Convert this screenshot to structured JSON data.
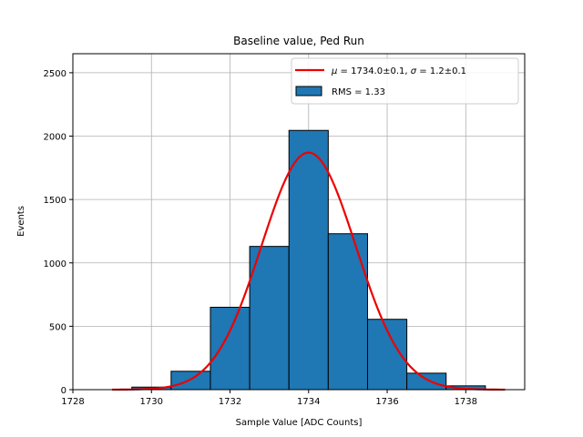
{
  "chart_data": {
    "type": "bar",
    "title": "Baseline value, Ped Run",
    "xlabel": "Sample Value [ADC Counts]",
    "ylabel": "Events",
    "xlim": [
      1728,
      1739.5
    ],
    "ylim": [
      0,
      2650
    ],
    "x_ticks": [
      1728,
      1730,
      1732,
      1734,
      1736,
      1738
    ],
    "y_ticks": [
      0,
      500,
      1000,
      1500,
      2000,
      2500
    ],
    "grid": true,
    "legend_position": "upper right",
    "bins": [
      {
        "left": 1729.5,
        "right": 1730.5,
        "count": 20
      },
      {
        "left": 1730.5,
        "right": 1731.5,
        "count": 145
      },
      {
        "left": 1731.5,
        "right": 1732.5,
        "count": 650
      },
      {
        "left": 1732.5,
        "right": 1733.5,
        "count": 1130
      },
      {
        "left": 1733.5,
        "right": 1734.5,
        "count": 2045
      },
      {
        "left": 1734.5,
        "right": 1735.5,
        "count": 1230
      },
      {
        "left": 1735.5,
        "right": 1736.5,
        "count": 555
      },
      {
        "left": 1736.5,
        "right": 1737.5,
        "count": 130
      },
      {
        "left": 1737.5,
        "right": 1738.5,
        "count": 30
      }
    ],
    "fit": {
      "mu": 1734.0,
      "sigma": 1.2,
      "amplitude": 1870,
      "x_range": [
        1729,
        1739
      ]
    },
    "legend": {
      "fit_label_mu": "μ",
      "fit_label_rest": " = 1734.0±0.1, ",
      "fit_label_sigma": "σ",
      "fit_label_end": " = 1.2±0.1",
      "hist_label": "RMS = 1.33"
    },
    "colors": {
      "bar": "#1f77b4",
      "fit": "#ee0000",
      "grid": "#b0b0b0"
    }
  }
}
